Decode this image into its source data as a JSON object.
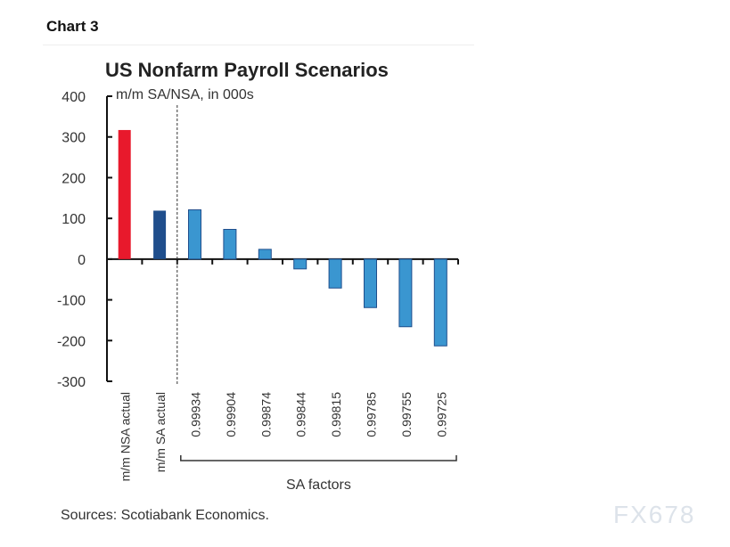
{
  "header": {
    "label": "Chart 3"
  },
  "footer": {
    "source": "Sources: Scotiabank Economics.",
    "watermark": "FX678"
  },
  "chart_data": {
    "type": "bar",
    "title": "US Nonfarm Payroll Scenarios",
    "subtitle": "m/m SA/NSA, in 000s",
    "categories": [
      "m/m NSA actual",
      "m/m SA actual",
      "0.99934",
      "0.99904",
      "0.99874",
      "0.99844",
      "0.99815",
      "0.99785",
      "0.99755",
      "0.99725"
    ],
    "values": [
      317,
      119,
      121,
      73,
      24,
      -24,
      -71,
      -119,
      -166,
      -213
    ],
    "colors": [
      "#e8192c",
      "#1f4e8c",
      "#3a96d0",
      "#3a96d0",
      "#3a96d0",
      "#3a96d0",
      "#3a96d0",
      "#3a96d0",
      "#3a96d0",
      "#3a96d0"
    ],
    "group_label": "SA factors",
    "ylim": [
      -300,
      400
    ],
    "yticks": [
      400,
      300,
      200,
      100,
      0,
      -100,
      -200,
      -300
    ],
    "grid": false
  }
}
